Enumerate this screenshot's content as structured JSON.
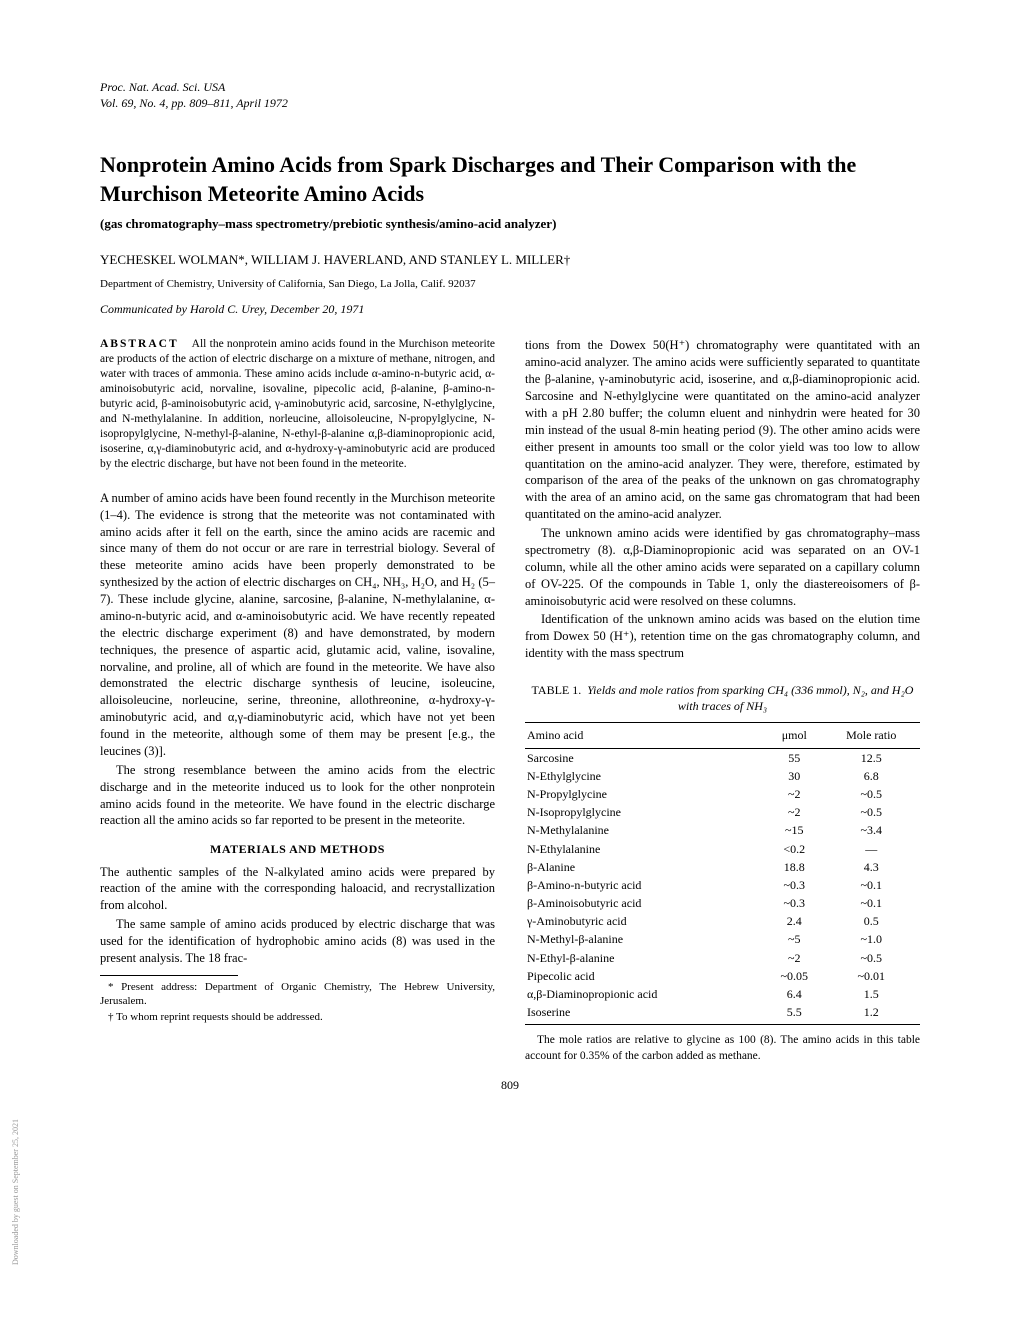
{
  "journal_header": {
    "line1": "Proc. Nat. Acad. Sci. USA",
    "line2": "Vol. 69, No. 4, pp. 809–811, April 1972"
  },
  "title": "Nonprotein Amino Acids from Spark Discharges and Their Comparison with the Murchison Meteorite Amino Acids",
  "subtitle": "(gas chromatography–mass spectrometry/prebiotic synthesis/amino-acid analyzer)",
  "authors": "YECHESKEL WOLMAN*, WILLIAM J. HAVERLAND, AND STANLEY L. MILLER†",
  "affiliation": "Department of Chemistry, University of California, San Diego, La Jolla, Calif. 92037",
  "communicated": "Communicated by Harold C. Urey, December 20, 1971",
  "abstract": {
    "label": "ABSTRACT",
    "text": "All the nonprotein amino acids found in the Murchison meteorite are products of the action of electric discharge on a mixture of methane, nitrogen, and water with traces of ammonia. These amino acids include α-amino-n-butyric acid, α-aminoisobutyric acid, norvaline, isovaline, pipecolic acid, β-alanine, β-amino-n-butyric acid, β-aminoisobutyric acid, γ-aminobutyric acid, sarcosine, N-ethylglycine, and N-methylalanine. In addition, norleucine, alloisoleucine, N-propylglycine, N-isopropylglycine, N-methyl-β-alanine, N-ethyl-β-alanine α,β-diaminopropionic acid, isoserine, α,γ-diaminobutyric acid, and α-hydroxy-γ-aminobutyric acid are produced by the electric discharge, but have not been found in the meteorite."
  },
  "body": {
    "p1": "A number of amino acids have been found recently in the Murchison meteorite (1–4). The evidence is strong that the meteorite was not contaminated with amino acids after it fell on the earth, since the amino acids are racemic and since many of them do not occur or are rare in terrestrial biology. Several of these meteorite amino acids have been properly demonstrated to be synthesized by the action of electric discharges on CH₄, NH₃, H₂O, and H₂ (5–7). These include glycine, alanine, sarcosine, β-alanine, N-methylalanine, α-amino-n-butyric acid, and α-aminoisobutyric acid. We have recently repeated the electric discharge experiment (8) and have demonstrated, by modern techniques, the presence of aspartic acid, glutamic acid, valine, isovaline, norvaline, and proline, all of which are found in the meteorite. We have also demonstrated the electric discharge synthesis of leucine, isoleucine, alloisoleucine, norleucine, serine, threonine, allothreonine, α-hydroxy-γ-aminobutyric acid, and α,γ-diaminobutyric acid, which have not yet been found in the meteorite, although some of them may be present [e.g., the leucines (3)].",
    "p2": "The strong resemblance between the amino acids from the electric discharge and in the meteorite induced us to look for the other nonprotein amino acids found in the meteorite. We have found in the electric discharge reaction all the amino acids so far reported to be present in the meteorite.",
    "heading1": "MATERIALS AND METHODS",
    "p3": "The authentic samples of the N-alkylated amino acids were prepared by reaction of the amine with the corresponding haloacid, and recrystallization from alcohol.",
    "p4": "The same sample of amino acids produced by electric discharge that was used for the identification of hydrophobic amino acids (8) was used in the present analysis. The 18 frac-",
    "p5": "tions from the Dowex 50(H⁺) chromatography were quantitated with an amino-acid analyzer. The amino acids were sufficiently separated to quantitate the β-alanine, γ-aminobutyric acid, isoserine, and α,β-diaminopropionic acid. Sarcosine and N-ethylglycine were quantitated on the amino-acid analyzer with a pH 2.80 buffer; the column eluent and ninhydrin were heated for 30 min instead of the usual 8-min heating period (9). The other amino acids were either present in amounts too small or the color yield was too low to allow quantitation on the amino-acid analyzer. They were, therefore, estimated by comparison of the area of the peaks of the unknown on gas chromatography with the area of an amino acid, on the same gas chromatogram that had been quantitated on the amino-acid analyzer.",
    "p6": "The unknown amino acids were identified by gas chromatography–mass spectrometry (8). α,β-Diaminopropionic acid was separated on an OV-1 column, while all the other amino acids were separated on a capillary column of OV-225. Of the compounds in Table 1, only the diastereoisomers of β-aminoisobutyric acid were resolved on these columns.",
    "p7": "Identification of the unknown amino acids was based on the elution time from Dowex 50 (H⁺), retention time on the gas chromatography column, and identity with the mass spectrum"
  },
  "footnotes": {
    "f1": "* Present address: Department of Organic Chemistry, The Hebrew University, Jerusalem.",
    "f2": "† To whom reprint requests should be addressed."
  },
  "table1": {
    "caption_label": "TABLE 1.",
    "caption_text": "Yields and mole ratios from sparking CH₄ (336 mmol), N₂, and H₂O with traces of NH₃",
    "columns": [
      "Amino acid",
      "μmol",
      "Mole ratio"
    ],
    "rows": [
      [
        "Sarcosine",
        "55",
        "12.5"
      ],
      [
        "N-Ethylglycine",
        "30",
        "6.8"
      ],
      [
        "N-Propylglycine",
        "~2",
        "~0.5"
      ],
      [
        "N-Isopropylglycine",
        "~2",
        "~0.5"
      ],
      [
        "N-Methylalanine",
        "~15",
        "~3.4"
      ],
      [
        "N-Ethylalanine",
        "<0.2",
        "—"
      ],
      [
        "β-Alanine",
        "18.8",
        "4.3"
      ],
      [
        "β-Amino-n-butyric acid",
        "~0.3",
        "~0.1"
      ],
      [
        "β-Aminoisobutyric acid",
        "~0.3",
        "~0.1"
      ],
      [
        "γ-Aminobutyric acid",
        "2.4",
        "0.5"
      ],
      [
        "N-Methyl-β-alanine",
        "~5",
        "~1.0"
      ],
      [
        "N-Ethyl-β-alanine",
        "~2",
        "~0.5"
      ],
      [
        "Pipecolic acid",
        "~0.05",
        "~0.01"
      ],
      [
        "α,β-Diaminopropionic acid",
        "6.4",
        "1.5"
      ],
      [
        "Isoserine",
        "5.5",
        "1.2"
      ]
    ],
    "note": "The mole ratios are relative to glycine as 100 (8). The amino acids in this table account for 0.35% of the carbon added as methane."
  },
  "page_number": "809",
  "side_text": "Downloaded by guest on September 25, 2021"
}
